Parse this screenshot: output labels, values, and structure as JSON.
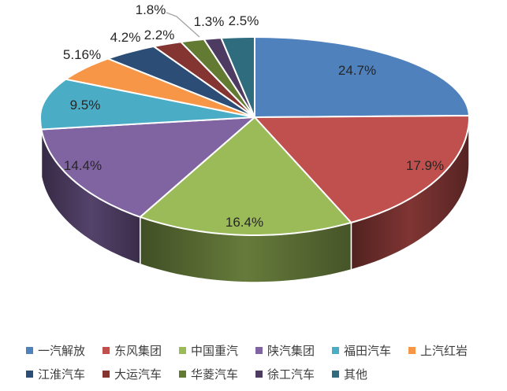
{
  "chart_data": {
    "type": "pie",
    "style": "3d-exploded-none",
    "title": "",
    "start_at": "12-oclock-clockwise",
    "categories": [
      "一汽解放",
      "东风集团",
      "中国重汽",
      "陕汽集团",
      "福田汽车",
      "上汽红岩",
      "江淮汽车",
      "大运汽车",
      "华菱汽车",
      "徐工汽车",
      "其他"
    ],
    "values": [
      24.7,
      17.9,
      16.4,
      14.4,
      9.5,
      5.16,
      4.2,
      2.2,
      1.8,
      1.3,
      2.5
    ],
    "labels": [
      "24.7%",
      "17.9%",
      "16.4%",
      "14.4%",
      "9.5%",
      "5.16%",
      "4.2%",
      "2.2%",
      "1.8%",
      "1.3%",
      "2.5%"
    ],
    "colors": [
      "#4F81BD",
      "#C0504D",
      "#9BBB59",
      "#8064A2",
      "#4BACC6",
      "#F79646",
      "#2C4D75",
      "#843431",
      "#637A32",
      "#4D3B62",
      "#2E6C7E"
    ],
    "label_color": "#262626",
    "leader_line_color": "#A6A6A6",
    "legend_position": "bottom",
    "legend_rows": [
      [
        "一汽解放",
        "东风集团",
        "中国重汽",
        "陕汽集团",
        "福田汽车",
        "上汽红岩"
      ],
      [
        "江淮汽车",
        "大运汽车",
        "华菱汽车",
        "徐工汽车",
        "其他"
      ]
    ]
  }
}
